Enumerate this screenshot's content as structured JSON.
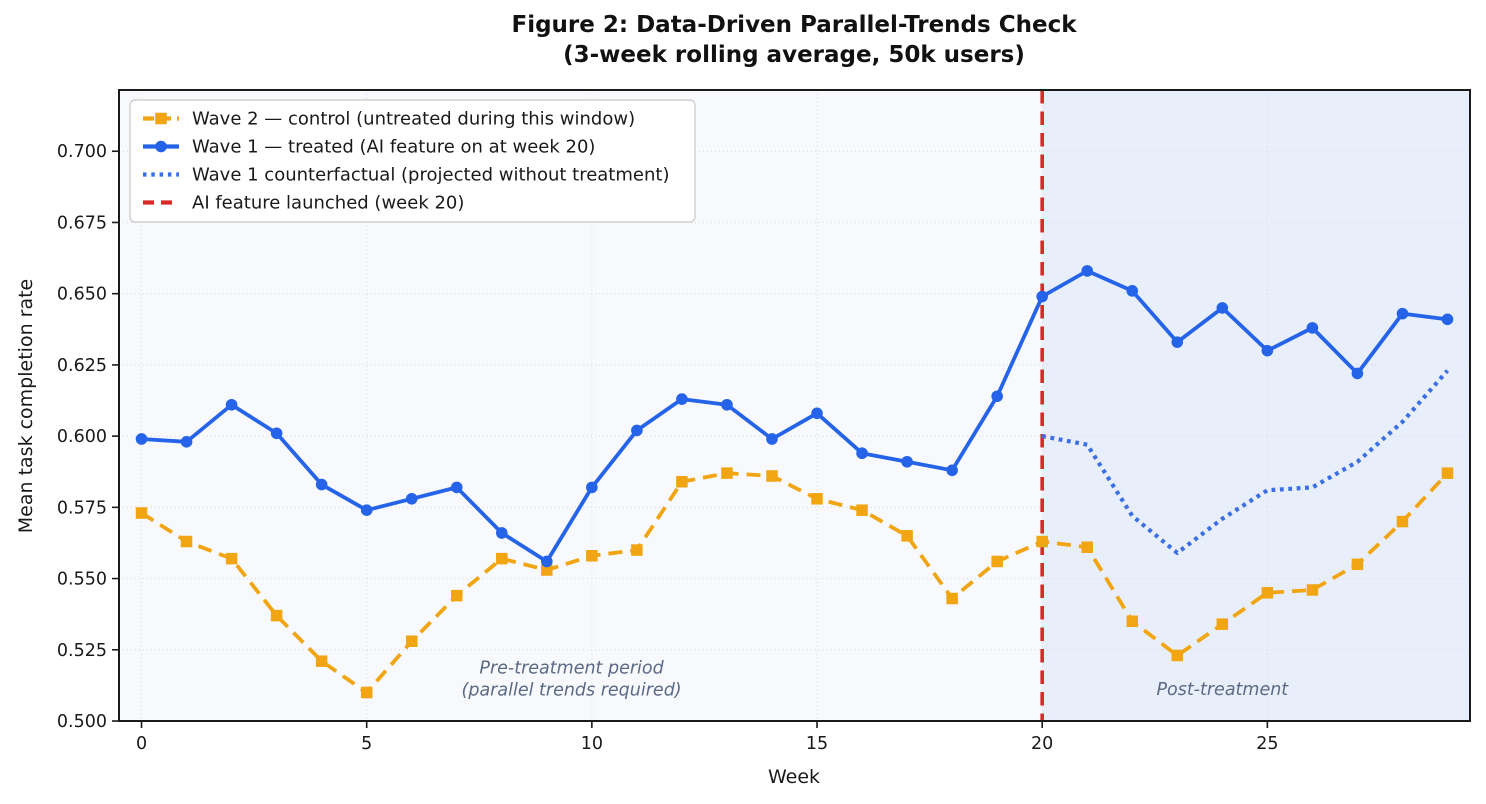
{
  "figure": {
    "title_line1": "Figure 2: Data-Driven Parallel-Trends Check",
    "title_line2": "(3-week rolling average, 50k users)"
  },
  "chart_data": {
    "type": "line",
    "title": "Figure 2: Data-Driven Parallel-Trends Check (3-week rolling average, 50k users)",
    "xlabel": "Week",
    "ylabel": "Mean task completion rate",
    "xlim": [
      -0.5,
      29.5
    ],
    "ylim": [
      0.5,
      0.7215
    ],
    "xticks": [
      0,
      5,
      10,
      15,
      20,
      25
    ],
    "yticks": [
      0.5,
      0.525,
      0.55,
      0.575,
      0.6,
      0.625,
      0.65,
      0.675,
      0.7
    ],
    "grid": "dotted",
    "legend_position": "upper left",
    "x": [
      0,
      1,
      2,
      3,
      4,
      5,
      6,
      7,
      8,
      9,
      10,
      11,
      12,
      13,
      14,
      15,
      16,
      17,
      18,
      19,
      20,
      21,
      22,
      23,
      24,
      25,
      26,
      27,
      28,
      29
    ],
    "series": [
      {
        "name": "Wave 2 — control (untreated during this window)",
        "color": "#F1A512",
        "style": "dashed",
        "marker": "square",
        "values": [
          0.573,
          0.563,
          0.557,
          0.537,
          0.521,
          0.51,
          0.528,
          0.544,
          0.557,
          0.553,
          0.558,
          0.56,
          0.584,
          0.587,
          0.586,
          0.578,
          0.574,
          0.565,
          0.543,
          0.556,
          0.563,
          0.561,
          0.535,
          0.523,
          0.534,
          0.545,
          0.546,
          0.555,
          0.57,
          0.587
        ]
      },
      {
        "name": "Wave 1 — treated (AI feature on at week 20)",
        "color": "#2563E8",
        "style": "solid",
        "marker": "circle",
        "values": [
          0.599,
          0.598,
          0.611,
          0.601,
          0.583,
          0.574,
          0.578,
          0.582,
          0.566,
          0.556,
          0.582,
          0.602,
          0.613,
          0.611,
          0.599,
          0.608,
          0.594,
          0.591,
          0.588,
          0.614,
          0.649,
          0.658,
          0.651,
          0.633,
          0.645,
          0.63,
          0.638,
          0.622,
          0.643,
          0.641
        ]
      },
      {
        "name": "Wave 1 counterfactual (projected without treatment)",
        "color": "#3B6FE3",
        "style": "dotted",
        "marker": "none",
        "x": [
          20,
          21,
          22,
          23,
          24,
          25,
          26,
          27,
          28,
          29
        ],
        "values": [
          0.6,
          0.597,
          0.572,
          0.559,
          0.571,
          0.581,
          0.582,
          0.591,
          0.605,
          0.623
        ]
      }
    ],
    "vline": {
      "x": 20,
      "color": "#D62B28",
      "style": "dashed",
      "label": "AI feature launched (week 20)"
    },
    "shading": {
      "pre_color": "#F7F9FC",
      "post_color": "#E9EFFA",
      "post_from": 20,
      "post_to": 29.5
    },
    "annotations": [
      {
        "id": "pre-treatment-note",
        "lines": [
          "Pre-treatment period",
          "(parallel trends required)"
        ],
        "x": 9.55,
        "y": 0.5135,
        "color": "#5B6A84"
      },
      {
        "id": "post-treatment-note",
        "lines": [
          "Post-treatment"
        ],
        "x": 24.0,
        "y": 0.5105,
        "color": "#5B6A84"
      }
    ]
  },
  "style_tokens": {
    "axis_color": "#1A1A1A",
    "grid_color": "#DBDFE6",
    "legend_border": "#CFCFCF",
    "legend_bg": "#FFFFFF"
  }
}
